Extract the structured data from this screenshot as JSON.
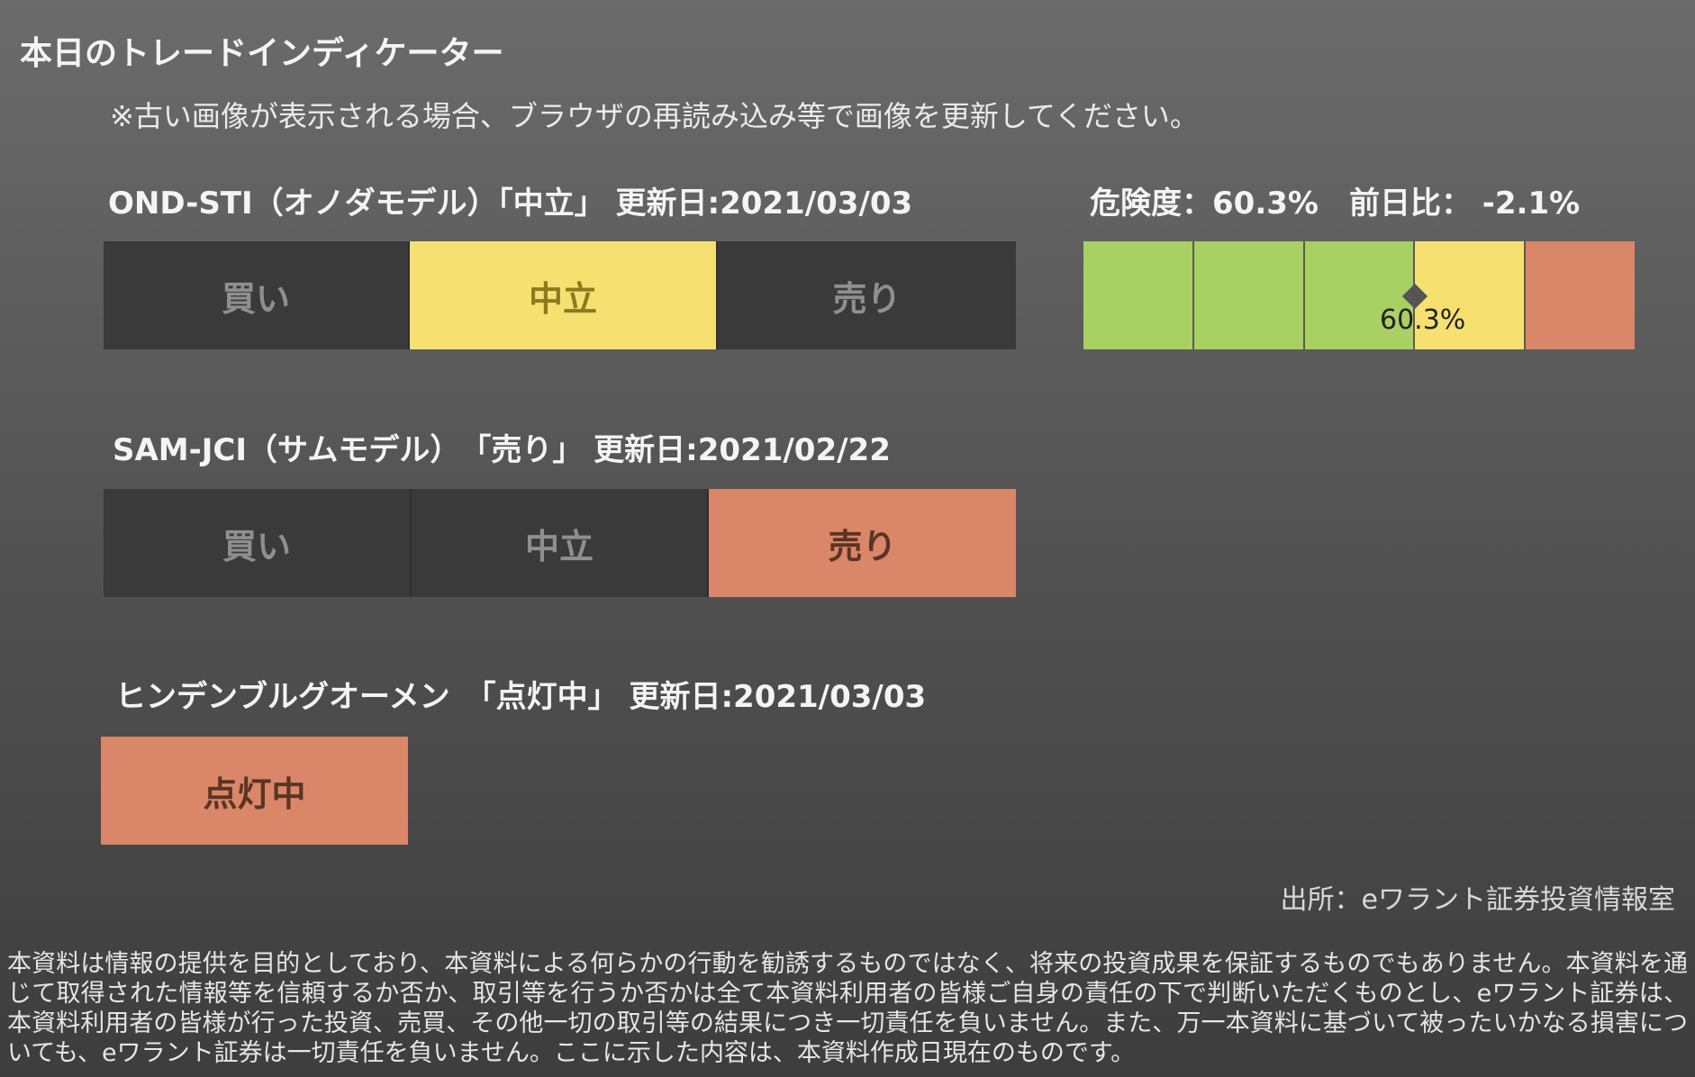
{
  "page": {
    "title": "本日のトレードインディケーター",
    "notice": "※古い画像が表示される場合、ブラウザの再読み込み等で画像を更新してください。"
  },
  "ond_sti": {
    "label": "OND-STI（オノダモデル）「中立」 更新日:2021/03/03",
    "options": [
      "買い",
      "中立",
      "売り"
    ],
    "active": "中立",
    "risk_label": "危険度：60.3%　前日比： -2.1%",
    "risk_value": 60.3,
    "marker_label": "60.3%",
    "risk_colors": [
      "#a8d063",
      "#a8d063",
      "#a8d063",
      "#f6e170",
      "#d98669"
    ]
  },
  "sam_jci": {
    "label": "SAM-JCI（サムモデル）　「売り」 更新日:2021/02/22",
    "options": [
      "買い",
      "中立",
      "売り"
    ],
    "active": "売り"
  },
  "hindenburg": {
    "label": "ヒンデンブルグオーメン　「点灯中」 更新日:2021/03/03",
    "status": "点灯中"
  },
  "footer": {
    "source": "出所：eワラント証券投資情報室",
    "disclaimer": "本資料は情報の提供を目的としており、本資料による何らかの行動を勧誘するものではなく、将来の投資成果を保証するものでもありません。本資料を通じて取得された情報等を信頼するか否か、取引等を行うか否かは全て本資料利用者の皆様ご自身の責任の下で判断いただくものとし、eワラント証券は、本資料利用者の皆様が行った投資、売買、その他一切の取引等の結果につき一切責任を負いません。また、万一本資料に基づいて被ったいかなる損害についても、eワラント証券は一切責任を負いません。ここに示した内容は、本資料作成日現在のものです。"
  },
  "colors": {
    "neutral_active": "#f6e170",
    "sell_active": "#d98669",
    "inactive": "#3a3a3a"
  }
}
